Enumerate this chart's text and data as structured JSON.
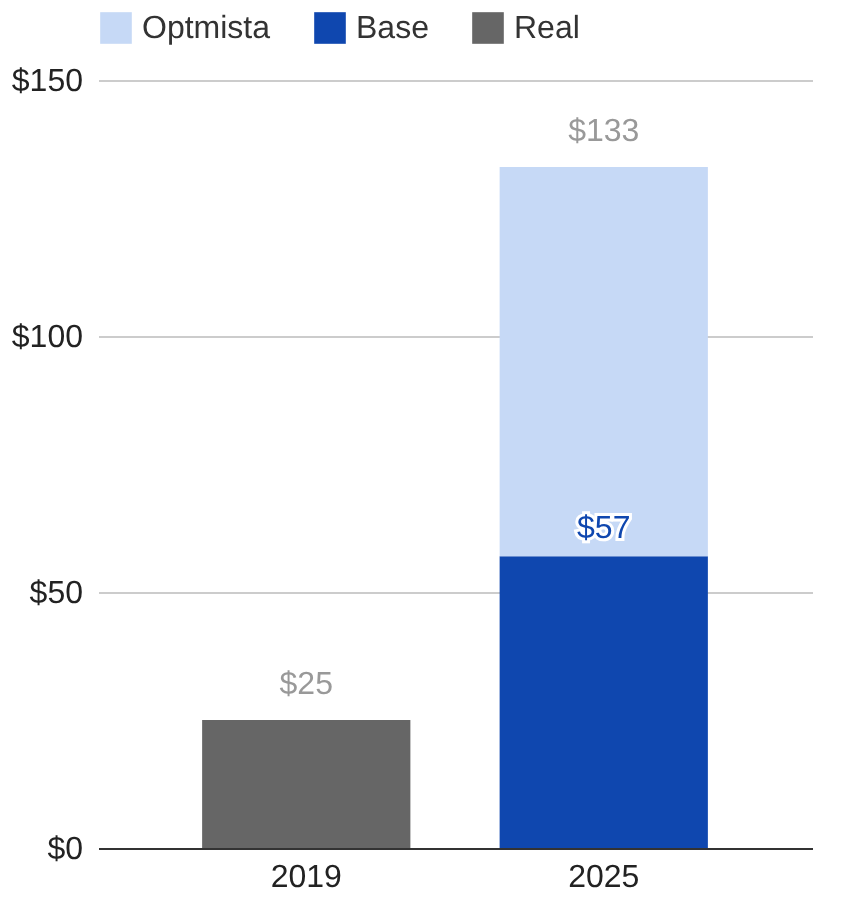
{
  "chart_data": {
    "type": "bar",
    "stacked": true,
    "categories": [
      "2019",
      "2025"
    ],
    "series": [
      {
        "name": "Real",
        "color": "#666666",
        "values": [
          25,
          null
        ]
      },
      {
        "name": "Base",
        "color": "#0f47af",
        "values": [
          null,
          57
        ],
        "value_labels": [
          null,
          "$57"
        ]
      },
      {
        "name": "Optmista",
        "color": "#c6d9f6",
        "values": [
          null,
          76
        ]
      }
    ],
    "totals": [
      "$25",
      "$133"
    ],
    "ylim": [
      0,
      150
    ],
    "yticks": [
      {
        "value": 0,
        "label": "$0"
      },
      {
        "value": 50,
        "label": "$50"
      },
      {
        "value": 100,
        "label": "$100"
      },
      {
        "value": 150,
        "label": "$150"
      }
    ],
    "grid": "y",
    "legend": "top"
  }
}
